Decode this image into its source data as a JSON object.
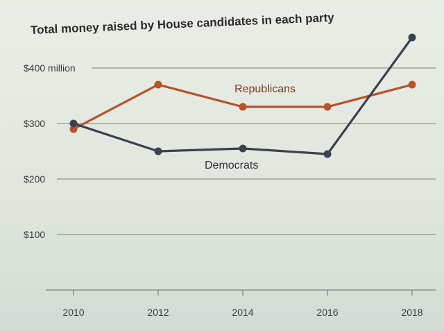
{
  "chart_data": {
    "type": "line",
    "title": "Total money raised by House candidates in each party",
    "x": [
      "2010",
      "2012",
      "2014",
      "2016",
      "2018"
    ],
    "series": [
      {
        "name": "Republicans",
        "color": "#b5532a",
        "values": [
          290,
          370,
          330,
          330,
          370
        ]
      },
      {
        "name": "Democrats",
        "color": "#3a4150",
        "values": [
          300,
          250,
          255,
          245,
          455
        ]
      }
    ],
    "yticks": [
      {
        "value": 100,
        "label": "$100"
      },
      {
        "value": 200,
        "label": "$200"
      },
      {
        "value": 300,
        "label": "$300"
      },
      {
        "value": 400,
        "label": "$400 million"
      }
    ],
    "ylim": [
      0,
      460
    ],
    "grid": true,
    "legend": "inline labels next to lines"
  }
}
